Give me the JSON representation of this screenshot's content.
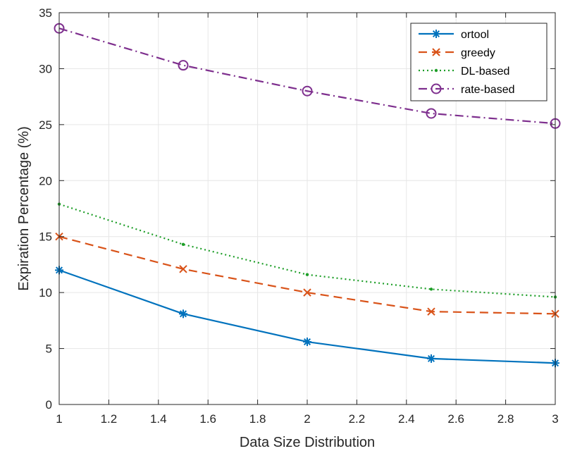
{
  "chart_data": {
    "type": "line",
    "xlabel": "Data Size Distribution",
    "ylabel": "Expiration Percentage (%)",
    "xlim": [
      1,
      3
    ],
    "ylim": [
      0,
      35
    ],
    "xticks": [
      1,
      1.2,
      1.4,
      1.6,
      1.8,
      2,
      2.2,
      2.4,
      2.6,
      2.8,
      3
    ],
    "xtick_labels": [
      "1",
      "1.2",
      "1.4",
      "1.6",
      "1.8",
      "2",
      "2.2",
      "2.4",
      "2.6",
      "2.8",
      "3"
    ],
    "yticks": [
      0,
      5,
      10,
      15,
      20,
      25,
      30,
      35
    ],
    "ytick_labels": [
      "0",
      "5",
      "10",
      "15",
      "20",
      "25",
      "30",
      "35"
    ],
    "grid": true,
    "legend_position": "top-right",
    "x": [
      1,
      1.5,
      2,
      2.5,
      3
    ],
    "series": [
      {
        "name": "ortool",
        "values": [
          12.0,
          8.1,
          5.6,
          4.1,
          3.7
        ],
        "color": "#0072BD",
        "marker": "asterisk",
        "dash": "solid"
      },
      {
        "name": "greedy",
        "values": [
          15.0,
          12.1,
          10.0,
          8.3,
          8.1
        ],
        "color": "#D95319",
        "marker": "x",
        "dash": "dashed"
      },
      {
        "name": "DL-based",
        "values": [
          17.9,
          14.3,
          11.6,
          10.3,
          9.6
        ],
        "color": "#1E9E28",
        "marker": "dot",
        "dash": "dotted"
      },
      {
        "name": "rate-based",
        "values": [
          33.6,
          30.3,
          28.0,
          26.0,
          25.1
        ],
        "color": "#7E2F8E",
        "marker": "circle",
        "dash": "dashdot"
      }
    ]
  }
}
